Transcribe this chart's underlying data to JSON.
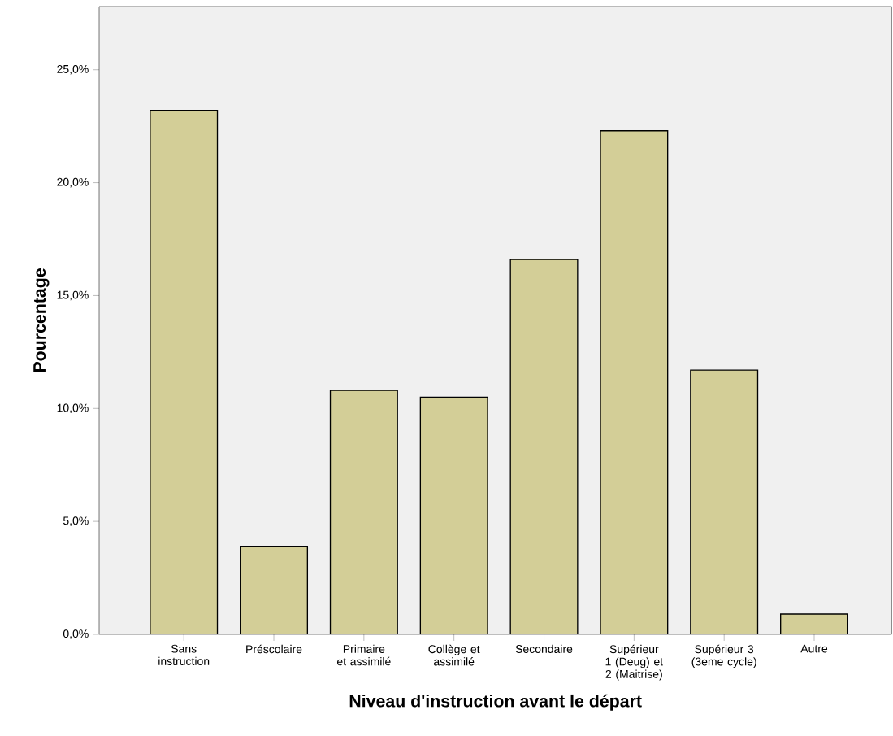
{
  "chart_data": {
    "type": "bar",
    "xlabel": "Niveau d'instruction avant le départ",
    "ylabel": "Pourcentage",
    "categories": [
      "Sans instruction",
      "Préscolaire",
      "Primaire et assimilé",
      "Collège et assimilé",
      "Secondaire",
      "Supérieur 1 (Deug) et 2 (Maitrise)",
      "Supérieur 3 (3eme cycle)",
      "Autre"
    ],
    "values": [
      23.2,
      3.9,
      10.8,
      10.5,
      16.6,
      22.3,
      11.7,
      0.9
    ],
    "color": "#d3ce97",
    "ylim": [
      0,
      27.8
    ],
    "yticks": [
      {
        "value": 0,
        "label": "0,0%"
      },
      {
        "value": 5,
        "label": "5,0%"
      },
      {
        "value": 10,
        "label": "10,0%"
      },
      {
        "value": 15,
        "label": "15,0%"
      },
      {
        "value": 20,
        "label": "20,0%"
      },
      {
        "value": 25,
        "label": "25,0%"
      }
    ],
    "grid": false
  }
}
